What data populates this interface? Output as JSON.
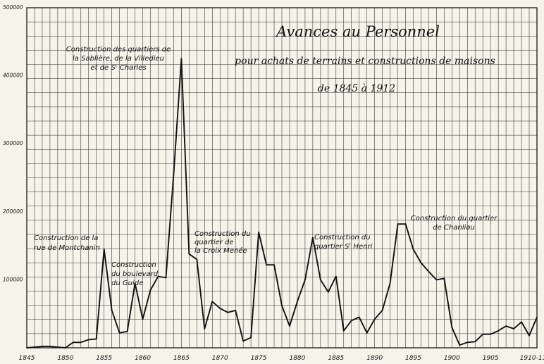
{
  "chart_data": {
    "type": "line",
    "title": "Avances au Personnel",
    "subtitle": "pour achats de terrains et constructions de maisons",
    "subtitle2": "de 1845 à 1912",
    "x": [
      1845,
      1846,
      1847,
      1848,
      1849,
      1850,
      1851,
      1852,
      1853,
      1854,
      1855,
      1856,
      1857,
      1858,
      1859,
      1860,
      1861,
      1862,
      1863,
      1864,
      1865,
      1866,
      1867,
      1868,
      1869,
      1870,
      1871,
      1872,
      1873,
      1874,
      1875,
      1876,
      1877,
      1878,
      1879,
      1880,
      1881,
      1882,
      1883,
      1884,
      1885,
      1886,
      1887,
      1888,
      1889,
      1890,
      1891,
      1892,
      1893,
      1894,
      1895,
      1896,
      1897,
      1898,
      1899,
      1900,
      1901,
      1902,
      1903,
      1904,
      1905,
      1906,
      1907,
      1908,
      1909,
      1910,
      1911
    ],
    "values": [
      0,
      1000,
      2000,
      2000,
      1000,
      0,
      8000,
      8000,
      12000,
      13000,
      145000,
      55000,
      22000,
      24000,
      95000,
      42000,
      85000,
      105000,
      103000,
      255000,
      425000,
      138000,
      130000,
      28000,
      68000,
      58000,
      52000,
      55000,
      10000,
      15000,
      170000,
      122000,
      122000,
      62000,
      32000,
      68000,
      100000,
      162000,
      100000,
      82000,
      105000,
      25000,
      40000,
      45000,
      22000,
      42000,
      55000,
      95000,
      182000,
      182000,
      145000,
      125000,
      112000,
      100000,
      102000,
      30000,
      4000,
      8000,
      9000,
      20000,
      20000,
      25000,
      32000,
      28000,
      38000,
      18000,
      45000
    ],
    "xticks": [
      1845,
      1850,
      1855,
      1860,
      1865,
      1870,
      1875,
      1880,
      1885,
      1890,
      1895,
      1900,
      1905
    ],
    "xtick_labels": [
      "1845",
      "1850",
      "1855",
      "1860",
      "1865",
      "1870",
      "1875",
      "1880",
      "1885",
      "1890",
      "1895",
      "1900",
      "1905"
    ],
    "last_tick_label": "1910-11",
    "yticks": [
      100000,
      200000,
      300000,
      400000,
      500000
    ],
    "ytick_labels": [
      "100000",
      "200000",
      "300000",
      "400000",
      "500000"
    ],
    "ylim": [
      0,
      500000
    ],
    "xlim": [
      1845,
      1911
    ],
    "grid": true,
    "annotations": [
      {
        "lines": [
          "Construction des quartiers de",
          "la Sablière, de la Villedieu",
          "et de Sᵗ Charles"
        ]
      },
      {
        "lines": [
          "Construction de la",
          "rue de Montchanin"
        ]
      },
      {
        "lines": [
          "Construction",
          "du boulevard",
          "du Guide"
        ]
      },
      {
        "lines": [
          "Construction du",
          "quartier de",
          "la Croix Menée"
        ]
      },
      {
        "lines": [
          "Construction du",
          "quartier Sᵗ Henri"
        ]
      },
      {
        "lines": [
          "Construction du quartier",
          "de Chanliau"
        ]
      }
    ]
  }
}
